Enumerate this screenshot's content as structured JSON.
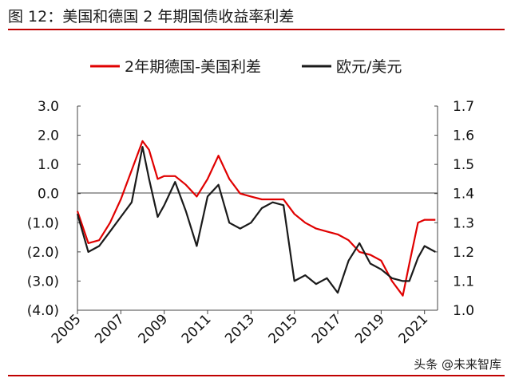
{
  "header": {
    "title": "图 12：美国和德国 2 年期国债收益率利差"
  },
  "watermark": "头条 @未来智库",
  "colors": {
    "spread_series": "#e00000",
    "eurusd_series": "#1a1a1a",
    "accent_rule": "#c00000"
  },
  "chart_data": {
    "type": "line",
    "title": "美国和德国 2 年期国债收益率利差",
    "legend_position": "top",
    "grid": false,
    "x": [
      2005,
      2005.5,
      2006,
      2006.5,
      2007,
      2007.5,
      2008,
      2008.3,
      2008.7,
      2009,
      2009.5,
      2010,
      2010.5,
      2011,
      2011.5,
      2012,
      2012.5,
      2013,
      2013.5,
      2014,
      2014.5,
      2015,
      2015.5,
      2016,
      2016.5,
      2017,
      2017.5,
      2018,
      2018.5,
      2019,
      2019.5,
      2020,
      2020.3,
      2020.7,
      2021,
      2021.5
    ],
    "xlim": [
      2005,
      2021.6
    ],
    "xticks": [
      2005,
      2007,
      2009,
      2011,
      2013,
      2015,
      2017,
      2019,
      2021
    ],
    "xtick_labels": [
      "2005",
      "2007",
      "2009",
      "2011",
      "2013",
      "2015",
      "2017",
      "2019",
      "2021"
    ],
    "y_left": {
      "label": "",
      "lim": [
        -4.0,
        3.0
      ],
      "ticks": [
        3.0,
        2.0,
        1.0,
        0.0,
        -1.0,
        -2.0,
        -3.0,
        -4.0
      ],
      "tick_labels": [
        "3.0",
        "2.0",
        "1.0",
        "0.0",
        "(1.0)",
        "(2.0)",
        "(3.0)",
        "(4.0)"
      ]
    },
    "y_right": {
      "label": "",
      "lim": [
        1.0,
        1.7
      ],
      "ticks": [
        1.7,
        1.6,
        1.5,
        1.4,
        1.3,
        1.2,
        1.1,
        1.0
      ],
      "tick_labels": [
        "1.7",
        "1.6",
        "1.5",
        "1.4",
        "1.3",
        "1.2",
        "1.1",
        "1.0"
      ]
    },
    "series": [
      {
        "name": "2年期德国-美国利差",
        "axis": "left",
        "values": [
          -0.6,
          -1.7,
          -1.6,
          -1.0,
          -0.2,
          0.8,
          1.8,
          1.5,
          0.5,
          0.6,
          0.6,
          0.3,
          -0.1,
          0.5,
          1.3,
          0.5,
          0.0,
          -0.1,
          -0.2,
          -0.2,
          -0.2,
          -0.7,
          -1.0,
          -1.2,
          -1.3,
          -1.4,
          -1.6,
          -2.0,
          -2.1,
          -2.3,
          -3.0,
          -3.5,
          -2.4,
          -1.0,
          -0.9,
          -0.9
        ]
      },
      {
        "name": "欧元/美元",
        "axis": "right",
        "values": [
          1.33,
          1.2,
          1.22,
          1.27,
          1.32,
          1.37,
          1.56,
          1.45,
          1.32,
          1.36,
          1.44,
          1.34,
          1.22,
          1.39,
          1.43,
          1.3,
          1.28,
          1.3,
          1.35,
          1.37,
          1.36,
          1.1,
          1.12,
          1.09,
          1.11,
          1.06,
          1.17,
          1.23,
          1.16,
          1.14,
          1.11,
          1.1,
          1.1,
          1.18,
          1.22,
          1.2
        ]
      }
    ]
  }
}
